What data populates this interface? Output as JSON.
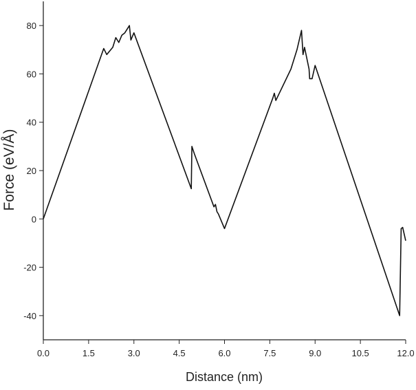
{
  "chart_data": {
    "type": "line",
    "x_label": "Distance (nm)",
    "y_label": "Force (eV/Å)",
    "x": [
      0,
      2.0,
      2.1,
      2.3,
      2.4,
      2.5,
      2.6,
      2.7,
      2.85,
      2.9,
      3.0,
      4.9,
      4.92,
      5.0,
      5.65,
      5.7,
      5.75,
      5.8,
      6.0,
      7.6,
      7.65,
      7.7,
      8.2,
      8.4,
      8.55,
      8.6,
      8.65,
      8.8,
      8.82,
      8.9,
      9.0,
      11.8,
      11.85,
      11.9,
      12.0
    ],
    "values": [
      0,
      70.5,
      68,
      71,
      75,
      73,
      76,
      77,
      80,
      74,
      77,
      12.5,
      30,
      27,
      5,
      6,
      3,
      2,
      -4,
      50,
      52,
      49,
      62,
      70,
      78,
      68,
      71,
      62,
      58,
      58,
      63.5,
      -40,
      -4,
      -3.5,
      -9
    ],
    "color": "#111111",
    "xlim": [
      0,
      12
    ],
    "xticks": [
      {
        "value": 0,
        "label": "0.0"
      },
      1.5,
      {
        "value": 3,
        "label": "3.0"
      },
      4.5,
      {
        "value": 6,
        "label": "6.0"
      },
      7.5,
      {
        "value": 9,
        "label": "9.0"
      },
      10.5,
      {
        "value": 12,
        "label": "12.0"
      }
    ],
    "ylim": [
      -50,
      90
    ],
    "yticks": [
      -40,
      -20,
      0,
      20,
      40,
      60,
      80
    ]
  }
}
